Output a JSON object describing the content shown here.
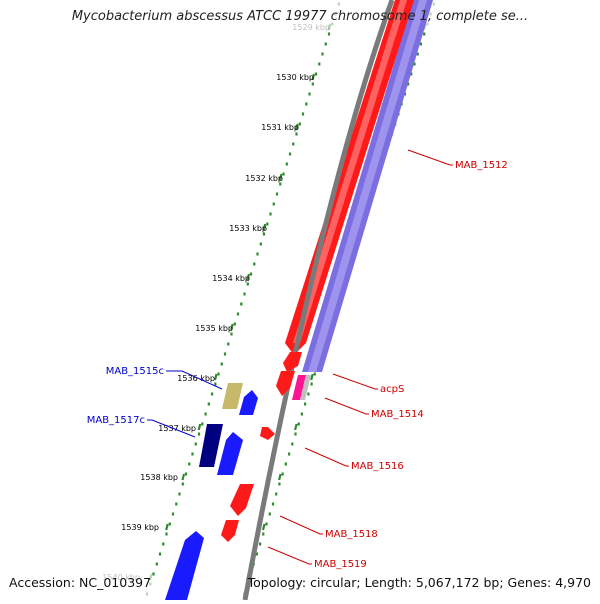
{
  "title": "Mycobacterium abscessus ATCC 19977 chromosome 1, complete se...",
  "footer": {
    "accession": "Accession: NC_010397",
    "topology": "Topology: circular; Length: 5,067,172 bp; Genes: 4,970"
  },
  "colors": {
    "forward_gene": "#ff1a1a",
    "reverse_gene": "#1a1aff",
    "reverse_dark": "#000080",
    "reverse_khaki": "#c8b86a",
    "purple_track": "#7a6ee0",
    "pink_gene": "#ff1493",
    "backbone": "#808080",
    "tick_green": "#2d8a2d",
    "label_red": "#cc0000",
    "label_blue": "#0000cc"
  },
  "ticks": [
    {
      "label": "1529 kbp",
      "faded": true
    },
    {
      "label": "1530 kbp"
    },
    {
      "label": "1531 kbp"
    },
    {
      "label": "1532 kbp"
    },
    {
      "label": "1533 kbp"
    },
    {
      "label": "1534 kbp"
    },
    {
      "label": "1535 kbp"
    },
    {
      "label": "1536 kbp"
    },
    {
      "label": "1537 kbp"
    },
    {
      "label": "1538 kbp"
    },
    {
      "label": "1539 kbp"
    },
    {
      "label": "1540 kbp",
      "faded": true
    }
  ],
  "gene_labels": {
    "mab_1512": "MAB_1512",
    "acps": "acpS",
    "mab_1514": "MAB_1514",
    "mab_1516": "MAB_1516",
    "mab_1518": "MAB_1518",
    "mab_1519": "MAB_1519",
    "mab_1515c": "MAB_1515c",
    "mab_1517c": "MAB_1517c"
  }
}
